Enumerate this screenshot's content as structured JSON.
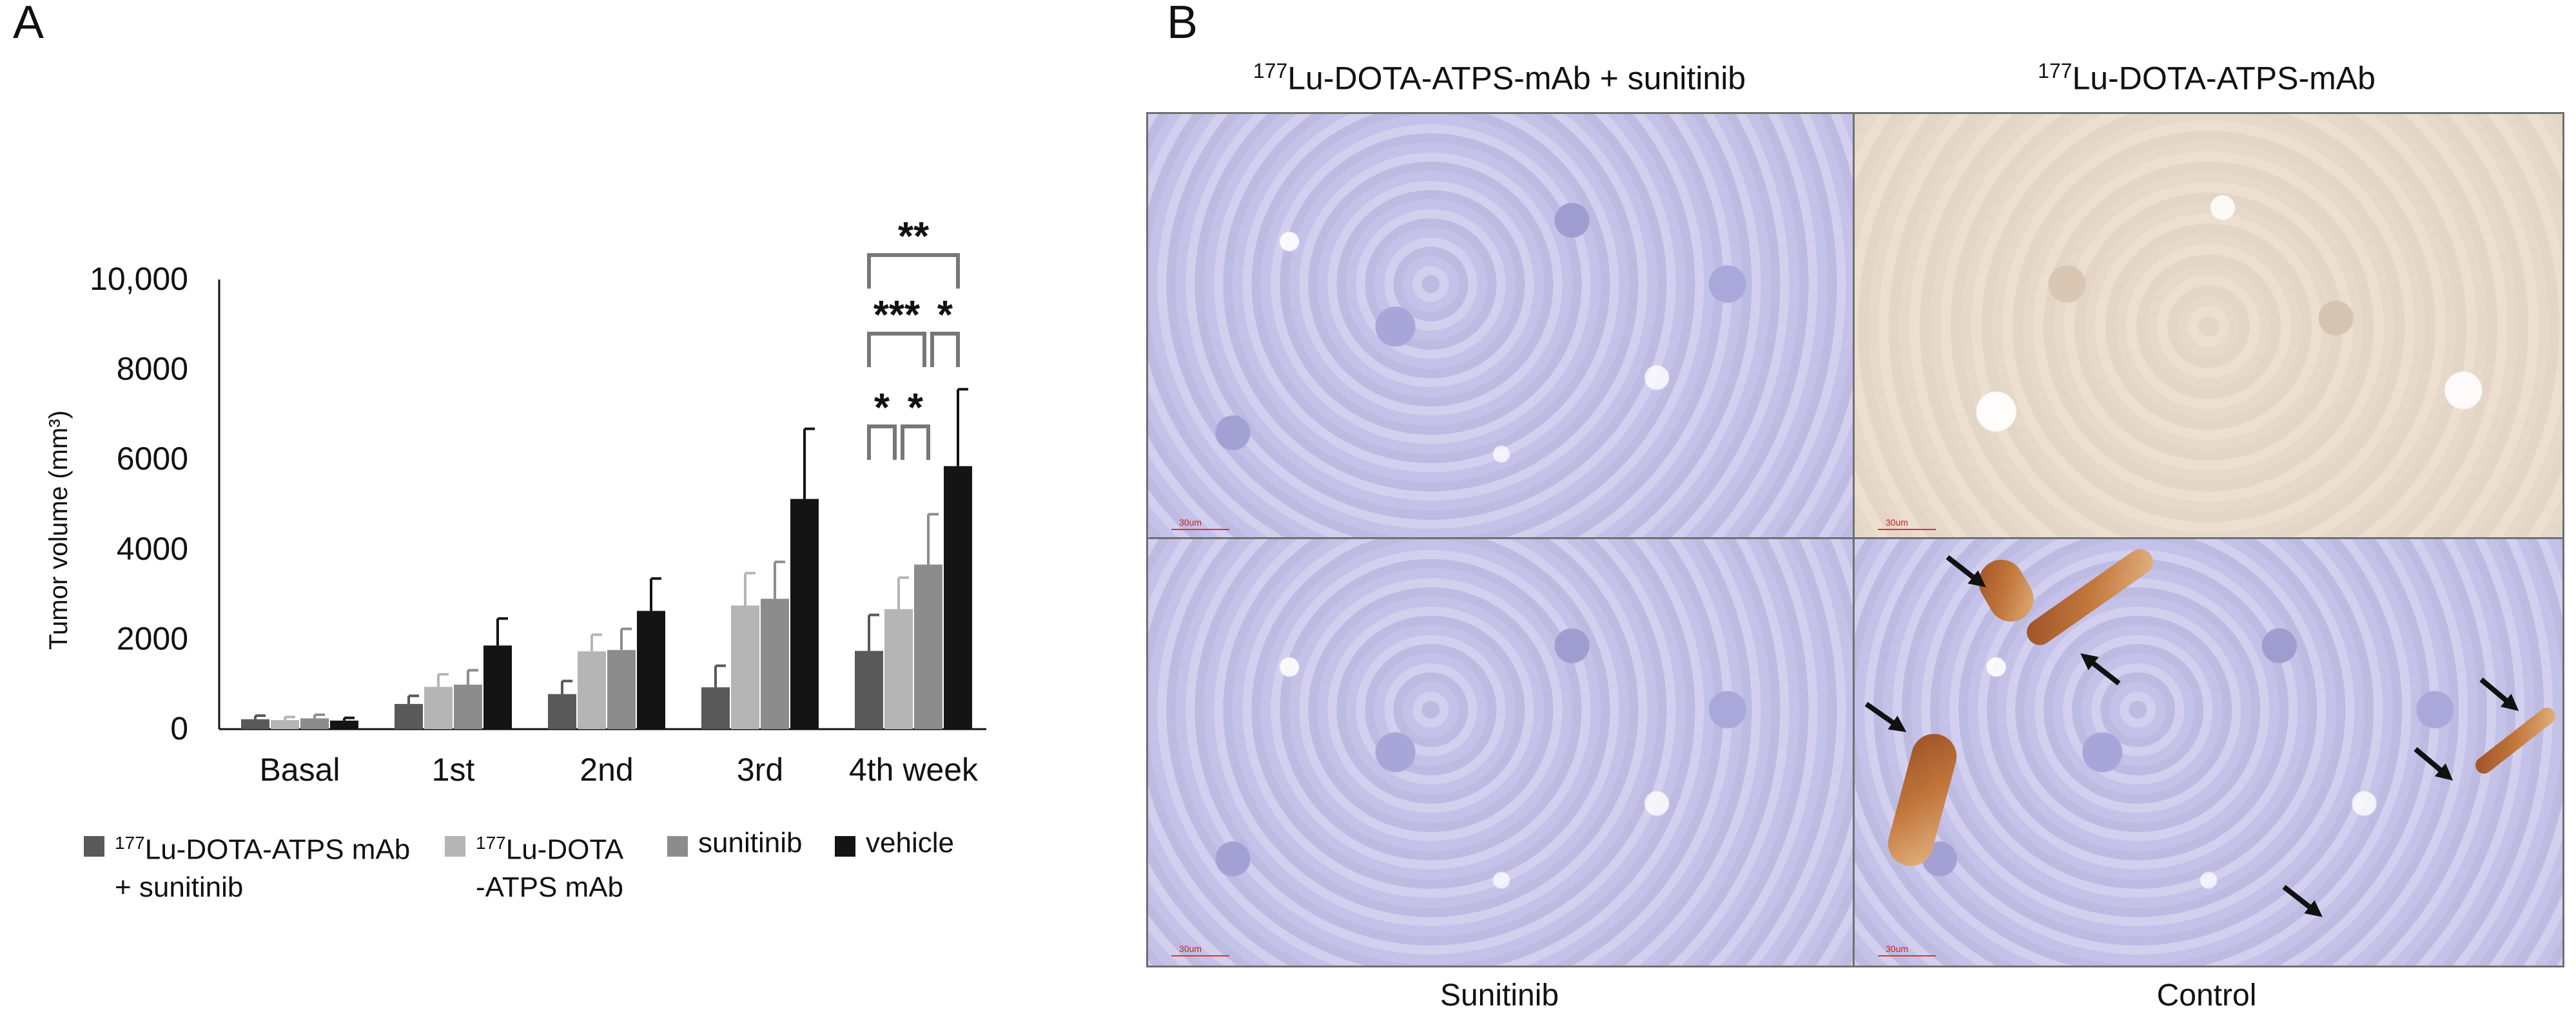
{
  "panel_a_label": "A",
  "panel_b_label": "B",
  "chart_data": {
    "type": "bar",
    "xlabel": "",
    "ylabel": "Tumor volume (mm³)",
    "ylim": [
      0,
      10000
    ],
    "yticks": [
      "0",
      "2000",
      "4000",
      "6000",
      "8000",
      "10,000"
    ],
    "ytick_values": [
      0,
      2000,
      4000,
      6000,
      8000,
      10000
    ],
    "categories": [
      "Basal",
      "1st",
      "2nd",
      "3rd",
      "4th week"
    ],
    "series": [
      {
        "name": "177Lu-DOTA-ATPS mAb + sunitinib",
        "color": "#595959",
        "values": [
          220,
          560,
          780,
          930,
          1740
        ],
        "errors": [
          80,
          180,
          290,
          480,
          800
        ]
      },
      {
        "name": "177Lu-DOTA-ATPS mAb",
        "color": "#b5b5b5",
        "values": [
          200,
          940,
          1730,
          2750,
          2670
        ],
        "errors": [
          70,
          280,
          370,
          720,
          700
        ]
      },
      {
        "name": "sunitinib",
        "color": "#8c8c8c",
        "values": [
          240,
          990,
          1760,
          2900,
          3660
        ],
        "errors": [
          80,
          320,
          470,
          820,
          1120
        ]
      },
      {
        "name": "vehicle",
        "color": "#141414",
        "values": [
          190,
          1860,
          2630,
          5120,
          5850
        ],
        "errors": [
          60,
          600,
          720,
          1560,
          1710
        ]
      }
    ],
    "annotations": [
      "*",
      "*",
      "***",
      "*",
      "**"
    ],
    "legend": {
      "placement": "bottom",
      "items": [
        {
          "prefix": "177",
          "line1": "Lu-DOTA-ATPS mAb",
          "line2": "+ sunitinib"
        },
        {
          "prefix": "177",
          "line1": "Lu-DOTA",
          "line2": "-ATPS mAb"
        },
        {
          "prefix": "",
          "line1": "sunitinib",
          "line2": ""
        },
        {
          "prefix": "",
          "line1": "vehicle",
          "line2": ""
        }
      ]
    }
  },
  "panel_b": {
    "column_titles": [
      {
        "sup": "177",
        "text": "Lu-DOTA-ATPS-mAb + sunitinib"
      },
      {
        "sup": "177",
        "text": "Lu-DOTA-ATPS-mAb"
      }
    ],
    "bottom_labels": [
      "Sunitinib",
      "Control"
    ],
    "scale_label": "30um"
  }
}
